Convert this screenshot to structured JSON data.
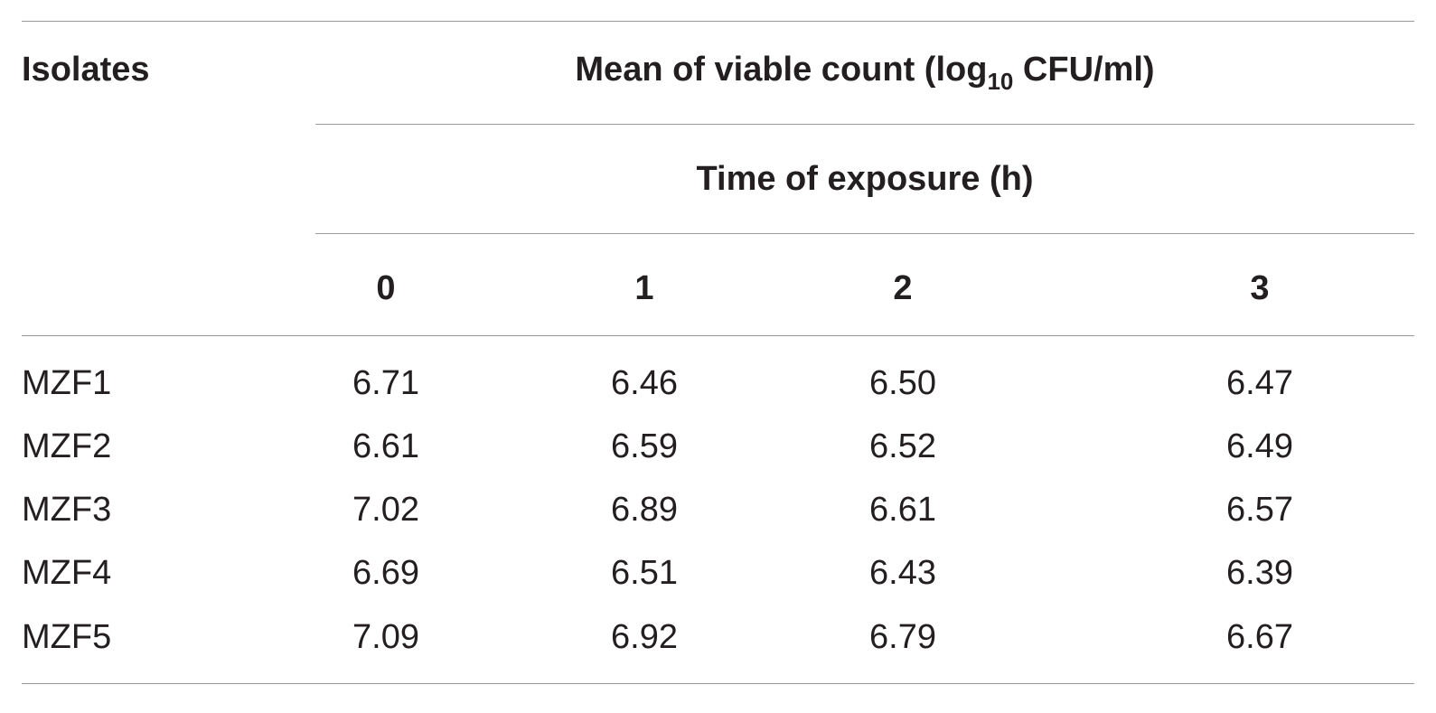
{
  "table": {
    "header": {
      "isolates": "Isolates",
      "mean_main": "Mean of viable count (log",
      "mean_sub": "10",
      "mean_unit": " CFU/ml)",
      "time": "Time of exposure (h)",
      "columns": [
        "0",
        "1",
        "2",
        "3"
      ]
    },
    "rows": [
      {
        "label": "MZF1",
        "values": [
          "6.71",
          "6.46",
          "6.50",
          "6.47"
        ]
      },
      {
        "label": "MZF2",
        "values": [
          "6.61",
          "6.59",
          "6.52",
          "6.49"
        ]
      },
      {
        "label": "MZF3",
        "values": [
          "7.02",
          "6.89",
          "6.61",
          "6.57"
        ]
      },
      {
        "label": "MZF4",
        "values": [
          "6.69",
          "6.51",
          "6.43",
          "6.39"
        ]
      },
      {
        "label": "MZF5",
        "values": [
          "7.09",
          "6.92",
          "6.79",
          "6.67"
        ]
      }
    ]
  }
}
